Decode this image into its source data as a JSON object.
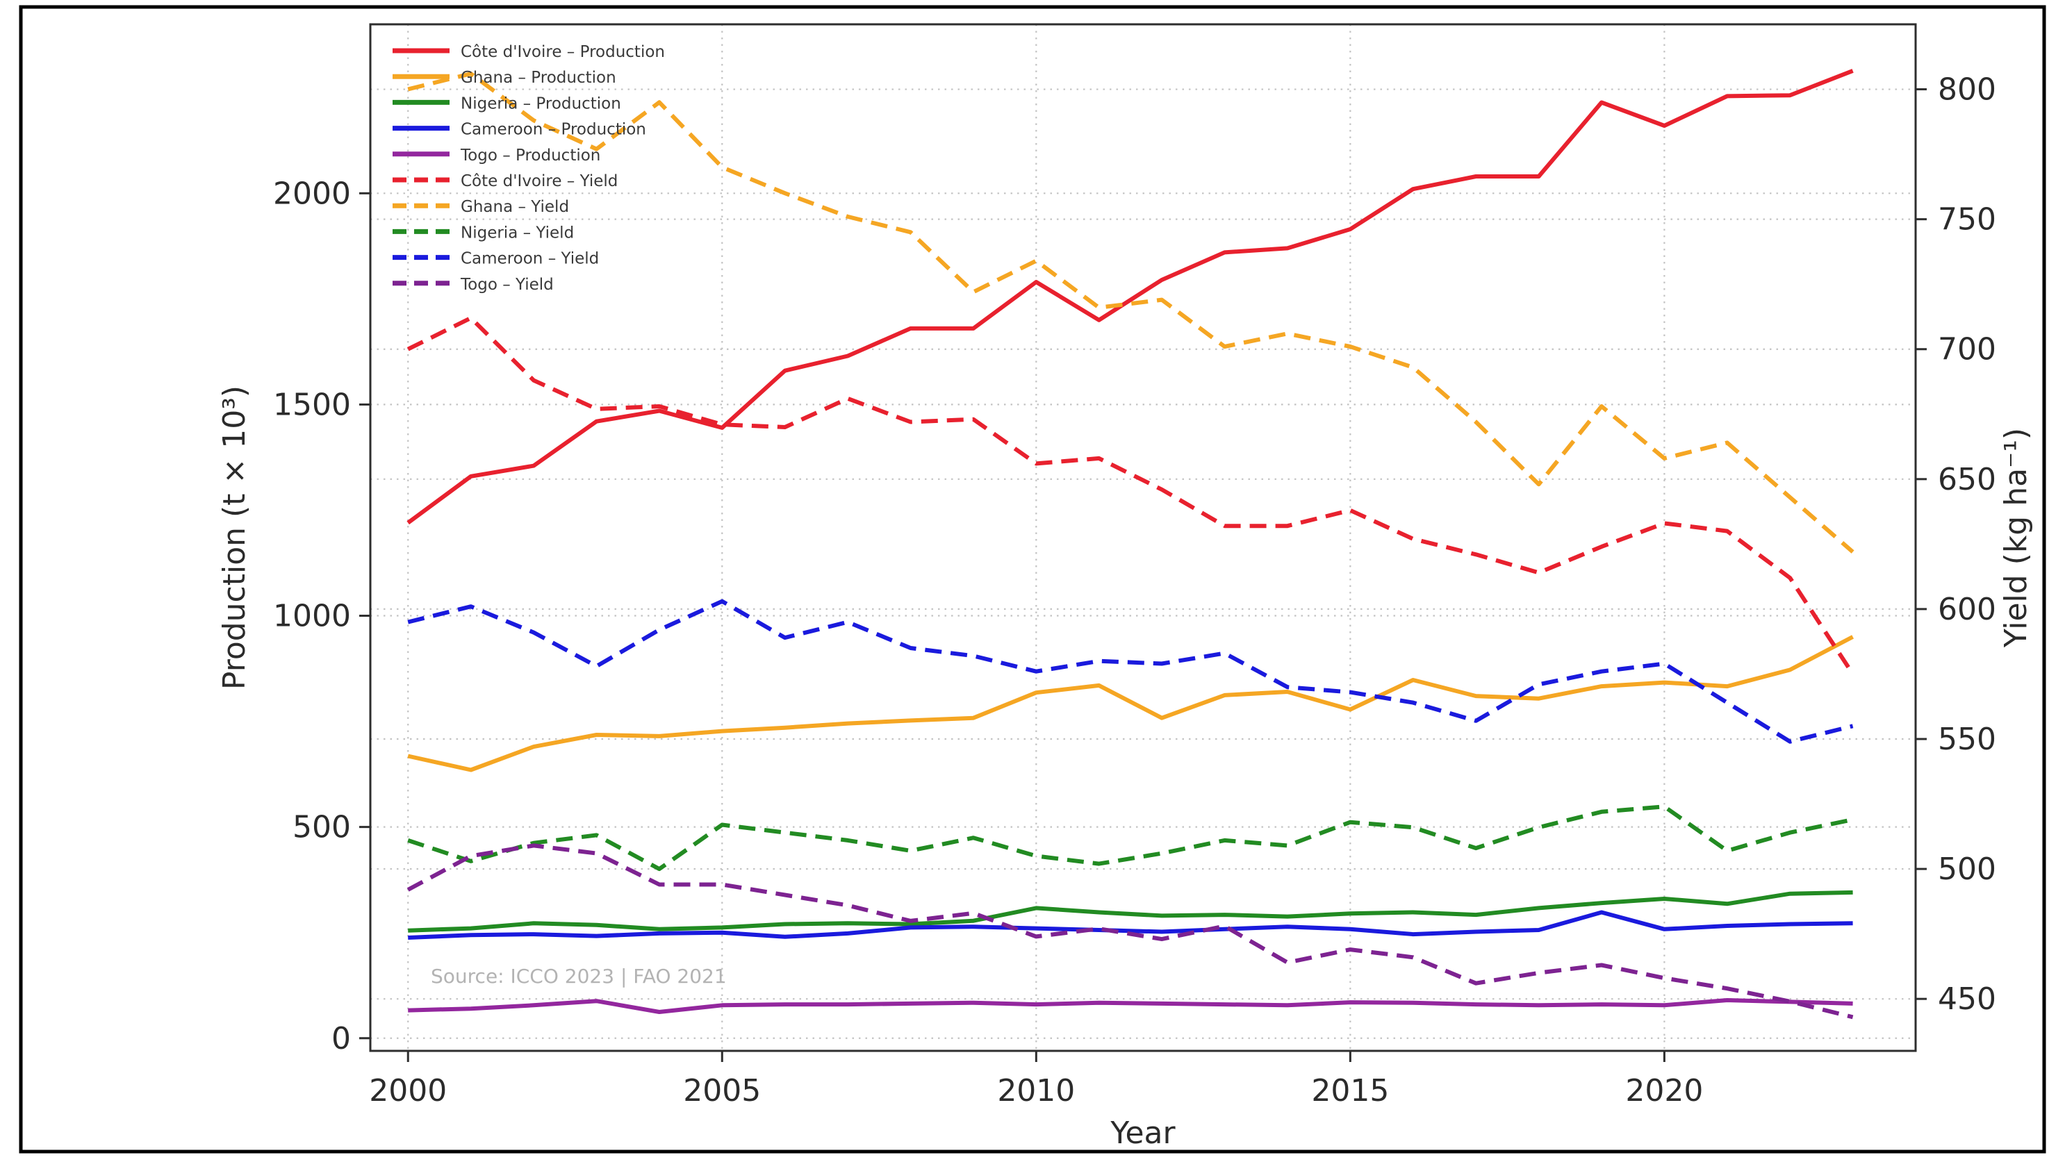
{
  "figure": {
    "source_note": "Source: ICCO 2023 | FAO 2021"
  },
  "chart_data": {
    "type": "line",
    "title": "",
    "xlabel": "Year",
    "ylabel_left": "Production (t × 10³)",
    "ylabel_right": "Yield (kg ha⁻¹)",
    "grid": true,
    "legend_position": "upper left",
    "x": [
      2000,
      2001,
      2002,
      2003,
      2004,
      2005,
      2006,
      2007,
      2008,
      2009,
      2010,
      2011,
      2012,
      2013,
      2014,
      2015,
      2016,
      2017,
      2018,
      2019,
      2020,
      2021,
      2022,
      2023
    ],
    "xlim": [
      1999.4,
      2024.0
    ],
    "ylim_left": [
      -30,
      2400
    ],
    "ylim_right": [
      430,
      825
    ],
    "xticks": [
      2000,
      2005,
      2010,
      2015,
      2020
    ],
    "yticks_left": [
      0,
      500,
      1000,
      1500,
      2000
    ],
    "yticks_right": [
      450,
      500,
      550,
      600,
      650,
      700,
      750,
      800
    ],
    "series": [
      {
        "name": "Côte d'Ivoire – Production",
        "axis": "left",
        "style": "solid",
        "color": "#e8212e",
        "values": [
          1220,
          1330,
          1355,
          1460,
          1485,
          1445,
          1580,
          1615,
          1680,
          1680,
          1790,
          1700,
          1795,
          1860,
          1870,
          1915,
          2010,
          2040,
          2040,
          2215,
          2160,
          2230,
          2232,
          2290
        ]
      },
      {
        "name": "Ghana – Production",
        "axis": "left",
        "style": "solid",
        "color": "#f5a623",
        "values": [
          668,
          635,
          690,
          718,
          715,
          727,
          735,
          745,
          752,
          758,
          818,
          835,
          758,
          812,
          820,
          778,
          848,
          810,
          804,
          833,
          842,
          833,
          872,
          950
        ]
      },
      {
        "name": "Nigeria – Production",
        "axis": "left",
        "style": "solid",
        "color": "#228b22",
        "values": [
          255,
          260,
          272,
          268,
          258,
          262,
          270,
          272,
          270,
          278,
          308,
          298,
          290,
          292,
          288,
          295,
          298,
          292,
          308,
          320,
          330,
          318,
          342,
          345
        ]
      },
      {
        "name": "Cameroon – Production",
        "axis": "left",
        "style": "solid",
        "color": "#1a1add",
        "values": [
          238,
          244,
          246,
          242,
          248,
          250,
          240,
          248,
          262,
          264,
          260,
          256,
          252,
          258,
          264,
          258,
          246,
          252,
          256,
          298,
          258,
          266,
          270,
          272
        ]
      },
      {
        "name": "Togo – Production",
        "axis": "left",
        "style": "solid",
        "color": "#93279e",
        "values": [
          66,
          70,
          78,
          88,
          62,
          78,
          80,
          80,
          82,
          84,
          80,
          84,
          82,
          80,
          78,
          85,
          84,
          80,
          78,
          80,
          78,
          90,
          86,
          82
        ]
      },
      {
        "name": "Côte d'Ivoire – Yield",
        "axis": "right",
        "style": "dashed",
        "color": "#e8212e",
        "values": [
          700,
          712,
          688,
          677,
          678,
          671,
          670,
          681,
          672,
          673,
          656,
          658,
          646,
          632,
          632,
          638,
          627,
          621,
          614,
          624,
          633,
          630,
          612,
          575
        ]
      },
      {
        "name": "Ghana – Yield",
        "axis": "right",
        "style": "dashed",
        "color": "#f5a623",
        "values": [
          800,
          806,
          788,
          777,
          795,
          770,
          760,
          751,
          745,
          722,
          734,
          716,
          719,
          701,
          706,
          701,
          693,
          672,
          648,
          678,
          658,
          664,
          643,
          622
        ]
      },
      {
        "name": "Nigeria – Yield",
        "axis": "right",
        "style": "dashed",
        "color": "#228b22",
        "values": [
          511,
          503,
          510,
          513,
          500,
          517,
          514,
          511,
          507,
          512,
          505,
          502,
          506,
          511,
          509,
          518,
          516,
          508,
          516,
          522,
          524,
          507,
          514,
          519
        ]
      },
      {
        "name": "Cameroon – Yield",
        "axis": "right",
        "style": "dashed",
        "color": "#1a1add",
        "values": [
          595,
          601,
          591,
          578,
          592,
          603,
          589,
          595,
          585,
          582,
          576,
          580,
          579,
          583,
          570,
          568,
          564,
          557,
          571,
          576,
          579,
          564,
          549,
          555
        ]
      },
      {
        "name": "Togo – Yield",
        "axis": "right",
        "style": "dashed",
        "color": "#7d2391",
        "values": [
          492,
          505,
          509,
          506,
          494,
          494,
          490,
          486,
          480,
          483,
          474,
          477,
          473,
          478,
          464,
          469,
          466,
          456,
          460,
          463,
          458,
          454,
          449,
          443
        ]
      }
    ]
  }
}
